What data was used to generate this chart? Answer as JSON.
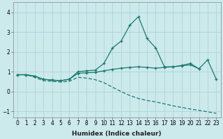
{
  "xlabel": "Humidex (Indice chaleur)",
  "background_color": "#cce9ec",
  "grid_color": "#b0d8dc",
  "line_color": "#1a7a6e",
  "xlim": [
    -0.5,
    23.5
  ],
  "ylim": [
    -1.3,
    4.5
  ],
  "x_ticks": [
    0,
    1,
    2,
    3,
    4,
    5,
    6,
    7,
    8,
    9,
    10,
    11,
    12,
    13,
    14,
    15,
    16,
    17,
    18,
    19,
    20,
    21,
    22,
    23
  ],
  "y_ticks": [
    -1,
    0,
    1,
    2,
    3,
    4
  ],
  "series": [
    {
      "x": [
        0,
        1,
        2,
        3,
        4,
        5,
        6,
        7,
        8,
        9,
        10,
        11,
        12,
        13,
        14,
        15,
        16,
        17,
        18,
        19,
        20,
        21
      ],
      "y": [
        0.85,
        0.85,
        0.78,
        0.62,
        0.58,
        0.55,
        0.62,
        1.0,
        1.05,
        1.08,
        1.42,
        2.2,
        2.55,
        3.35,
        3.78,
        2.68,
        2.2,
        1.25,
        1.25,
        1.32,
        1.42,
        1.15
      ],
      "style": "-",
      "marker": "+"
    },
    {
      "x": [
        0,
        1,
        2,
        3,
        4,
        5,
        6,
        7,
        8,
        9,
        10,
        11,
        12,
        13,
        14,
        15,
        16,
        17,
        18,
        19,
        20,
        21,
        22,
        23
      ],
      "y": [
        0.85,
        0.85,
        0.78,
        0.62,
        0.58,
        0.55,
        0.62,
        0.92,
        0.95,
        0.97,
        1.05,
        1.12,
        1.18,
        1.22,
        1.25,
        1.22,
        1.18,
        1.22,
        1.25,
        1.3,
        1.35,
        1.15,
        1.6,
        0.62
      ],
      "style": "-",
      "marker": "+"
    },
    {
      "x": [
        0,
        1,
        2,
        3,
        4,
        5,
        6,
        7,
        8,
        9,
        10,
        11,
        12,
        13,
        14,
        15,
        16,
        17,
        18,
        19,
        20,
        21,
        22,
        23
      ],
      "y": [
        0.85,
        0.85,
        0.72,
        0.55,
        0.52,
        0.48,
        0.52,
        0.72,
        0.68,
        0.6,
        0.45,
        0.22,
        0.0,
        -0.2,
        -0.35,
        -0.45,
        -0.52,
        -0.62,
        -0.72,
        -0.8,
        -0.88,
        -0.95,
        -1.02,
        -1.1
      ],
      "style": "--",
      "marker": null
    }
  ]
}
